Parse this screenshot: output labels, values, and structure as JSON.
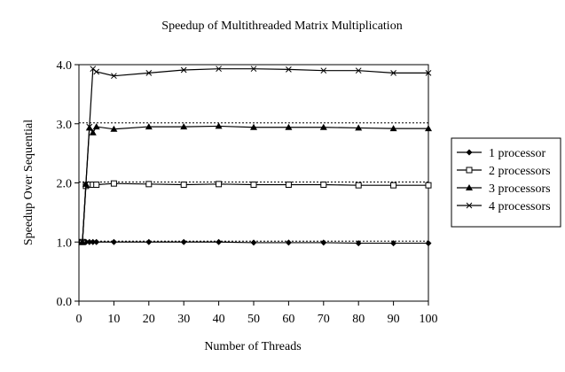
{
  "chart_data": {
    "type": "line",
    "title": "Speedup of Multithreaded Matrix Multiplication",
    "xlabel": "Number of Threads",
    "ylabel": "Speedup Over Sequential",
    "xlim": [
      0,
      100
    ],
    "ylim": [
      0,
      4
    ],
    "x_ticks": [
      0,
      10,
      20,
      30,
      40,
      50,
      60,
      70,
      80,
      90,
      100
    ],
    "x_tick_labels": [
      "0",
      "10",
      "20",
      "30",
      "40",
      "50",
      "60",
      "70",
      "80",
      "90",
      "100"
    ],
    "y_ticks": [
      0,
      1,
      2,
      3,
      4
    ],
    "y_tick_labels": [
      "0.0",
      "1.0",
      "2.0",
      "3.0",
      "4.0"
    ],
    "grid": false,
    "legend_position": "right",
    "reference_lines": [
      1,
      2,
      3
    ],
    "x": [
      1,
      2,
      3,
      4,
      5,
      10,
      20,
      30,
      40,
      50,
      60,
      70,
      80,
      90,
      100
    ],
    "series": [
      {
        "name": "1 processor",
        "marker": "diamond-filled",
        "values": [
          1.0,
          1.0,
          1.0,
          1.0,
          1.0,
          1.0,
          1.0,
          1.0,
          1.0,
          0.99,
          0.99,
          0.99,
          0.98,
          0.98,
          0.98
        ]
      },
      {
        "name": "2 processors",
        "marker": "square-open",
        "values": [
          1.0,
          1.95,
          1.97,
          1.97,
          1.97,
          1.99,
          1.98,
          1.97,
          1.98,
          1.97,
          1.97,
          1.97,
          1.96,
          1.96,
          1.96
        ]
      },
      {
        "name": "3 processors",
        "marker": "triangle-filled",
        "values": [
          1.0,
          1.98,
          2.93,
          2.85,
          2.95,
          2.91,
          2.95,
          2.95,
          2.96,
          2.94,
          2.94,
          2.94,
          2.93,
          2.92,
          2.92
        ]
      },
      {
        "name": "4 processors",
        "marker": "cross-x",
        "values": [
          1.0,
          1.98,
          2.95,
          3.93,
          3.88,
          3.81,
          3.86,
          3.91,
          3.93,
          3.93,
          3.92,
          3.9,
          3.9,
          3.86,
          3.86
        ]
      }
    ]
  }
}
